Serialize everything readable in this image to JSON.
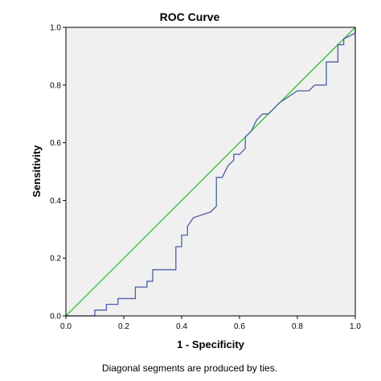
{
  "chart_data": {
    "type": "line",
    "title": "ROC Curve",
    "xlabel": "1 - Specificity",
    "ylabel": "Sensitivity",
    "xlim": [
      0.0,
      1.0
    ],
    "ylim": [
      0.0,
      1.0
    ],
    "x_ticks": [
      "0.0",
      "0.2",
      "0.4",
      "0.6",
      "0.8",
      "1.0"
    ],
    "y_ticks": [
      "0.0",
      "0.2",
      "0.4",
      "0.6",
      "0.8",
      "1.0"
    ],
    "grid": false,
    "footnote": "Diagonal segments are produced by ties.",
    "series": [
      {
        "color": "#4a5fa8",
        "style": "line",
        "points": [
          [
            0.0,
            0.0
          ],
          [
            0.1,
            0.0
          ],
          [
            0.1,
            0.02
          ],
          [
            0.14,
            0.02
          ],
          [
            0.14,
            0.04
          ],
          [
            0.18,
            0.04
          ],
          [
            0.18,
            0.06
          ],
          [
            0.24,
            0.06
          ],
          [
            0.24,
            0.1
          ],
          [
            0.28,
            0.1
          ],
          [
            0.28,
            0.12
          ],
          [
            0.3,
            0.12
          ],
          [
            0.3,
            0.16
          ],
          [
            0.38,
            0.16
          ],
          [
            0.38,
            0.24
          ],
          [
            0.4,
            0.24
          ],
          [
            0.4,
            0.28
          ],
          [
            0.42,
            0.28
          ],
          [
            0.42,
            0.31
          ],
          [
            0.44,
            0.34
          ],
          [
            0.5,
            0.36
          ],
          [
            0.52,
            0.38
          ],
          [
            0.52,
            0.48
          ],
          [
            0.54,
            0.48
          ],
          [
            0.56,
            0.52
          ],
          [
            0.58,
            0.54
          ],
          [
            0.58,
            0.56
          ],
          [
            0.6,
            0.56
          ],
          [
            0.62,
            0.58
          ],
          [
            0.62,
            0.62
          ],
          [
            0.64,
            0.64
          ],
          [
            0.66,
            0.68
          ],
          [
            0.68,
            0.7
          ],
          [
            0.7,
            0.7
          ],
          [
            0.74,
            0.74
          ],
          [
            0.8,
            0.78
          ],
          [
            0.84,
            0.78
          ],
          [
            0.86,
            0.8
          ],
          [
            0.9,
            0.8
          ],
          [
            0.9,
            0.88
          ],
          [
            0.94,
            0.88
          ],
          [
            0.94,
            0.94
          ],
          [
            0.96,
            0.94
          ],
          [
            0.96,
            0.96
          ],
          [
            1.0,
            0.98
          ],
          [
            1.0,
            1.0
          ]
        ]
      },
      {
        "color": "#2ec12e",
        "style": "line",
        "points": [
          [
            0.0,
            0.0
          ],
          [
            1.0,
            1.0
          ]
        ]
      }
    ]
  },
  "colors": {
    "plot_background": "#f0f0f0",
    "frame": "#000000"
  }
}
